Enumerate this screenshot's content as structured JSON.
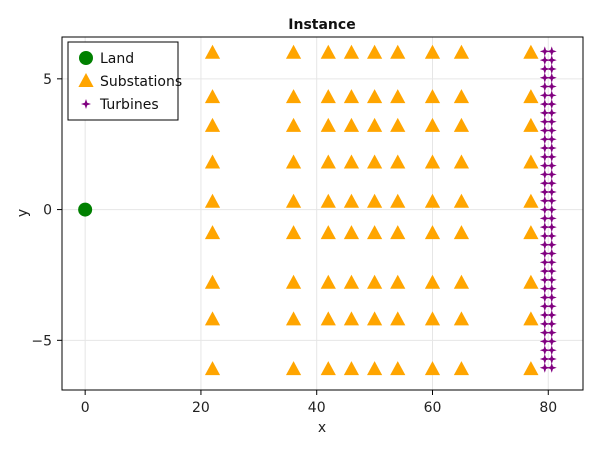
{
  "chart_data": {
    "type": "scatter",
    "title": "Instance",
    "xlabel": "x",
    "ylabel": "y",
    "xlim": [
      -4,
      86
    ],
    "ylim": [
      -6.9,
      6.6
    ],
    "xticks": [
      0,
      20,
      40,
      60,
      80
    ],
    "yticks": [
      -5,
      0,
      5
    ],
    "xtick_labels": [
      "0",
      "20",
      "40",
      "60",
      "80"
    ],
    "ytick_labels": [
      "−5",
      "0",
      "5"
    ],
    "grid": true,
    "legend_position": "top-left",
    "series": [
      {
        "name": "Land",
        "marker": "circle",
        "color": "#008000",
        "points": [
          [
            0,
            0
          ]
        ]
      },
      {
        "name": "Substations",
        "marker": "triangle",
        "color": "#FFA500",
        "x_values": [
          22,
          36,
          42,
          46,
          50,
          54,
          60,
          65,
          77
        ],
        "y_values": [
          6.0,
          4.3,
          3.2,
          1.8,
          0.3,
          -0.9,
          -2.8,
          -4.2,
          -6.1
        ]
      },
      {
        "name": "Turbines",
        "marker": "star",
        "color": "#800080",
        "x_values": [
          79.4,
          80.6
        ],
        "y_range": [
          -6.05,
          6.05
        ],
        "y_count": 37
      }
    ]
  }
}
